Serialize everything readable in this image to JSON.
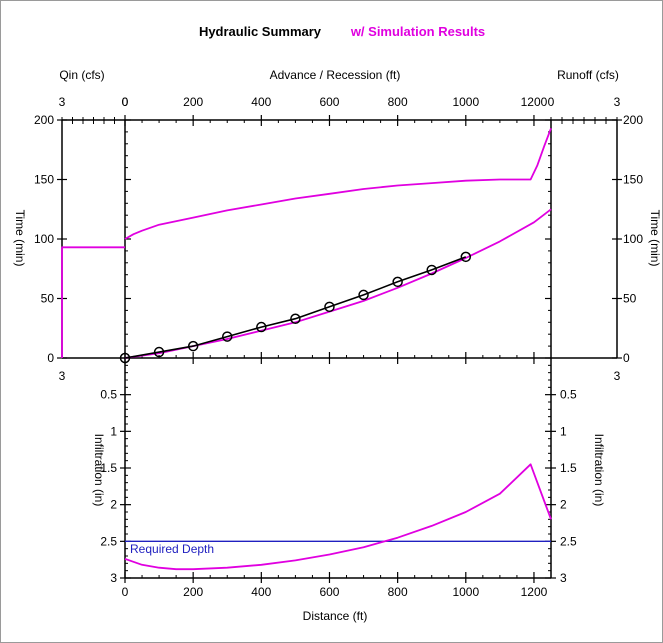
{
  "title": "Hydraulic Summary",
  "subtitle": "w/ Simulation Results",
  "colors": {
    "axis": "#000000",
    "simulation": "#e000e0",
    "observed": "#000000",
    "required_depth": "#2020c0"
  },
  "chart_data": [
    {
      "type": "line",
      "panel": "qin",
      "xlabel": "Qin (cfs)",
      "ylabel": "Time (min)",
      "x_ticks": [
        "3",
        "0"
      ],
      "y_ticks": [
        "0",
        "50",
        "100",
        "150",
        "200"
      ],
      "xlim": [
        3,
        0
      ],
      "ylim": [
        0,
        200
      ],
      "series": [
        {
          "points": [
            [
              3,
              0
            ],
            [
              3,
              93
            ],
            [
              0,
              93
            ]
          ]
        }
      ]
    },
    {
      "type": "line",
      "panel": "advance-recession",
      "xlabel": "Advance / Recession (ft)",
      "ylabel": "Time (min)",
      "x_ticks": [
        "0",
        "200",
        "400",
        "600",
        "800",
        "1000",
        "1200"
      ],
      "xlim": [
        0,
        1250
      ],
      "ylim": [
        0,
        200
      ],
      "series": [
        {
          "style": "simulated-recession",
          "x": [
            0,
            25,
            50,
            100,
            200,
            300,
            400,
            500,
            600,
            700,
            800,
            900,
            1000,
            1100,
            1150,
            1190,
            1210,
            1230,
            1250
          ],
          "y": [
            100,
            104,
            107,
            112,
            118,
            124,
            129,
            134,
            138,
            142,
            145,
            147,
            149,
            150,
            150,
            150,
            162,
            178,
            193
          ]
        },
        {
          "style": "simulated-advance",
          "x": [
            0,
            100,
            200,
            300,
            400,
            500,
            600,
            700,
            800,
            900,
            1000,
            1100,
            1200,
            1250
          ],
          "y": [
            0,
            4,
            10,
            16,
            23,
            30,
            39,
            48,
            59,
            71,
            84,
            98,
            114,
            125
          ]
        },
        {
          "style": "observed-advance",
          "x": [
            0,
            100,
            200,
            300,
            400,
            500,
            600,
            700,
            800,
            900,
            1000
          ],
          "y": [
            0,
            5,
            10,
            18,
            26,
            33,
            43,
            53,
            64,
            74,
            85
          ]
        }
      ]
    },
    {
      "type": "line",
      "panel": "runoff",
      "xlabel": "Runoff (cfs)",
      "ylabel": "Time (min)",
      "x_ticks": [
        "0",
        "3"
      ],
      "y_ticks": [
        "0",
        "50",
        "100",
        "150",
        "200"
      ],
      "xlim": [
        0,
        3
      ],
      "ylim": [
        0,
        200
      ],
      "series": []
    },
    {
      "type": "line",
      "panel": "infiltration",
      "xlabel": "Distance (ft)",
      "ylabel": "Infiltration (in)",
      "x_ticks": [
        "0",
        "200",
        "400",
        "600",
        "800",
        "1000",
        "1200"
      ],
      "y_ticks": [
        "0.5",
        "1",
        "1.5",
        "2",
        "2.5",
        "3"
      ],
      "side_ticks": [
        "3",
        "3"
      ],
      "xlim": [
        0,
        1250
      ],
      "ylim": [
        0,
        3
      ],
      "annotation": "Required Depth",
      "required_depth": 2.5,
      "series": [
        {
          "style": "simulated-infiltration",
          "x": [
            0,
            50,
            100,
            150,
            200,
            300,
            400,
            500,
            600,
            700,
            800,
            900,
            1000,
            1100,
            1190,
            1210,
            1230,
            1250
          ],
          "y": [
            2.74,
            2.82,
            2.86,
            2.88,
            2.88,
            2.86,
            2.82,
            2.76,
            2.68,
            2.58,
            2.45,
            2.29,
            2.1,
            1.85,
            1.45,
            1.7,
            1.95,
            2.2
          ]
        }
      ]
    }
  ]
}
